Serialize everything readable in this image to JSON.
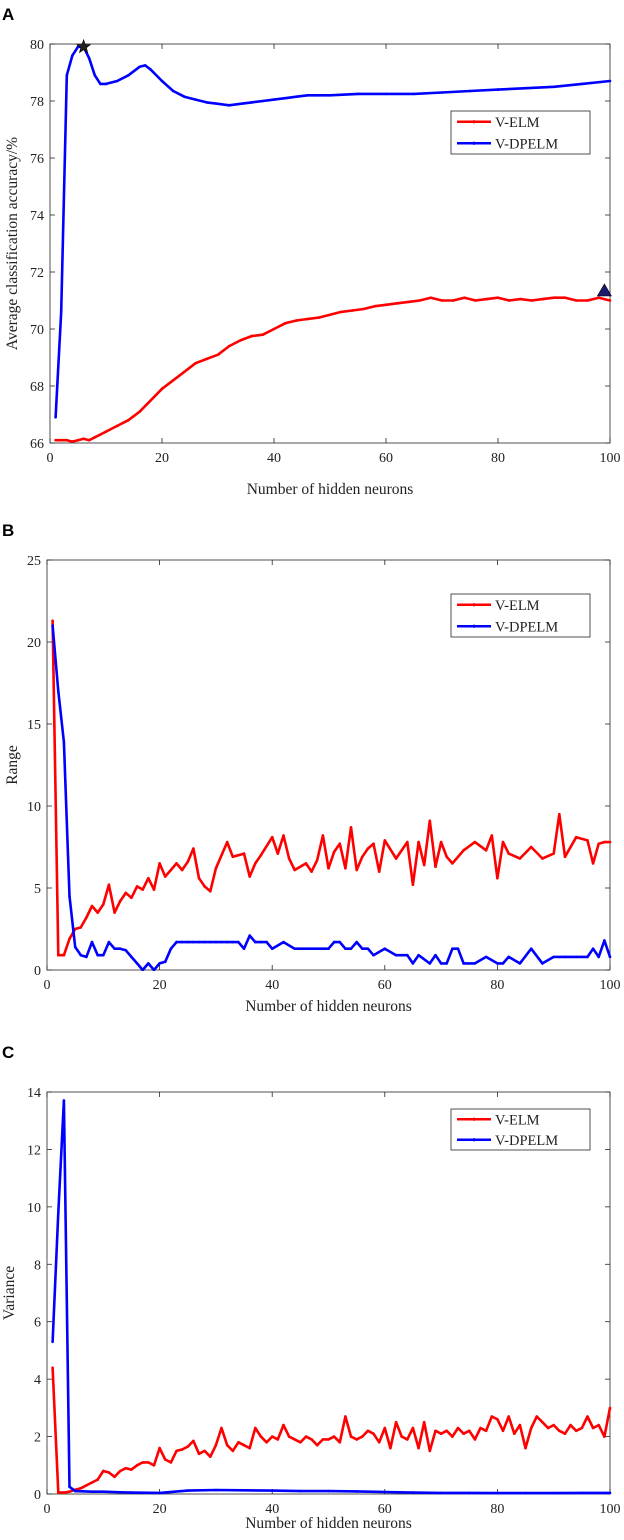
{
  "chart_data": [
    {
      "type": "line",
      "panel_label": "A",
      "xlabel": "Number of hidden neurons",
      "ylabel": "Average classification accuracy/%",
      "xlim": [
        0,
        100
      ],
      "ylim": [
        66,
        80
      ],
      "xticks": [
        0,
        20,
        40,
        60,
        80,
        100
      ],
      "yticks": [
        66,
        68,
        70,
        72,
        74,
        76,
        78,
        80
      ],
      "legend_position": "top-right",
      "grid": false,
      "series": [
        {
          "name": "V-ELM",
          "color": "#ff0000",
          "x": [
            1,
            2,
            3,
            4,
            5,
            6,
            7,
            8,
            9,
            10,
            12,
            14,
            16,
            18,
            20,
            22,
            24,
            26,
            28,
            30,
            32,
            34,
            36,
            38,
            40,
            42,
            44,
            46,
            48,
            50,
            52,
            54,
            56,
            58,
            60,
            62,
            64,
            66,
            68,
            70,
            72,
            74,
            76,
            78,
            80,
            82,
            84,
            86,
            88,
            90,
            92,
            94,
            96,
            98,
            100
          ],
          "y": [
            66.1,
            66.1,
            66.1,
            66.05,
            66.1,
            66.15,
            66.1,
            66.2,
            66.3,
            66.4,
            66.6,
            66.8,
            67.1,
            67.5,
            67.9,
            68.2,
            68.5,
            68.8,
            68.95,
            69.1,
            69.4,
            69.6,
            69.75,
            69.8,
            70.0,
            70.2,
            70.3,
            70.35,
            70.4,
            70.5,
            70.6,
            70.65,
            70.7,
            70.8,
            70.85,
            70.9,
            70.95,
            71.0,
            71.1,
            71.0,
            71.0,
            71.1,
            71.0,
            71.05,
            71.1,
            71.0,
            71.05,
            71.0,
            71.05,
            71.1,
            71.1,
            71.0,
            71.0,
            71.1,
            71.0
          ]
        },
        {
          "name": "V-DPELM",
          "color": "#0000ff",
          "x": [
            1,
            2,
            3,
            4,
            5,
            6,
            7,
            8,
            9,
            10,
            12,
            14,
            16,
            17,
            18,
            20,
            22,
            24,
            26,
            28,
            30,
            32,
            34,
            36,
            38,
            40,
            42,
            44,
            46,
            48,
            50,
            55,
            60,
            65,
            70,
            75,
            80,
            85,
            90,
            95,
            100
          ],
          "y": [
            66.9,
            70.6,
            78.9,
            79.6,
            79.9,
            79.9,
            79.5,
            78.9,
            78.6,
            78.6,
            78.7,
            78.9,
            79.2,
            79.25,
            79.1,
            78.7,
            78.35,
            78.15,
            78.05,
            77.95,
            77.9,
            77.85,
            77.9,
            77.95,
            78.0,
            78.05,
            78.1,
            78.15,
            78.2,
            78.2,
            78.2,
            78.25,
            78.25,
            78.25,
            78.3,
            78.35,
            78.4,
            78.45,
            78.5,
            78.6,
            78.7
          ]
        }
      ],
      "markers": [
        {
          "series": "V-DPELM",
          "x": 6,
          "y": 79.9,
          "shape": "star"
        },
        {
          "series": "V-ELM",
          "x": 99,
          "y": 71.3,
          "shape": "triangle"
        }
      ]
    },
    {
      "type": "line",
      "panel_label": "B",
      "xlabel": "Number of hidden neurons",
      "ylabel": "Range",
      "xlim": [
        0,
        100
      ],
      "ylim": [
        0,
        25
      ],
      "xticks": [
        0,
        20,
        40,
        60,
        80,
        100
      ],
      "yticks": [
        0,
        5,
        10,
        15,
        20,
        25
      ],
      "legend_position": "top-right",
      "grid": false,
      "series": [
        {
          "name": "V-ELM",
          "color": "#ff0000",
          "x": [
            1,
            2,
            3,
            4,
            5,
            6,
            7,
            8,
            9,
            10,
            11,
            12,
            13,
            14,
            15,
            16,
            17,
            18,
            19,
            20,
            21,
            22,
            23,
            24,
            25,
            26,
            27,
            28,
            29,
            30,
            32,
            33,
            34,
            35,
            36,
            37,
            38,
            40,
            41,
            42,
            43,
            44,
            46,
            47,
            48,
            49,
            50,
            51,
            52,
            53,
            54,
            55,
            56,
            57,
            58,
            59,
            60,
            62,
            64,
            65,
            66,
            67,
            68,
            69,
            70,
            71,
            72,
            74,
            76,
            78,
            79,
            80,
            81,
            82,
            84,
            86,
            88,
            90,
            91,
            92,
            94,
            96,
            97,
            98,
            99,
            100
          ],
          "y": [
            21.3,
            0.9,
            0.9,
            1.9,
            2.5,
            2.6,
            3.2,
            3.9,
            3.5,
            4.0,
            5.2,
            3.5,
            4.2,
            4.7,
            4.4,
            5.1,
            4.9,
            5.6,
            4.9,
            6.5,
            5.7,
            6.1,
            6.5,
            6.1,
            6.6,
            7.4,
            5.6,
            5.1,
            4.8,
            6.2,
            7.8,
            6.9,
            7.0,
            7.1,
            5.7,
            6.5,
            7.0,
            8.1,
            7.1,
            8.2,
            6.8,
            6.1,
            6.5,
            6.0,
            6.7,
            8.2,
            6.2,
            7.2,
            7.7,
            6.2,
            8.7,
            6.1,
            6.9,
            7.4,
            7.7,
            6.0,
            7.9,
            6.8,
            7.8,
            5.2,
            7.8,
            6.4,
            9.1,
            6.3,
            7.8,
            6.9,
            6.5,
            7.3,
            7.8,
            7.3,
            8.2,
            5.6,
            7.8,
            7.1,
            6.8,
            7.5,
            6.8,
            7.1,
            9.5,
            6.9,
            8.1,
            7.9,
            6.5,
            7.7,
            7.8,
            7.8
          ]
        },
        {
          "name": "V-DPELM",
          "color": "#0000ff",
          "x": [
            1,
            2,
            3,
            4,
            5,
            6,
            7,
            8,
            9,
            10,
            11,
            12,
            13,
            14,
            15,
            16,
            17,
            18,
            19,
            20,
            21,
            22,
            23,
            24,
            25,
            26,
            27,
            28,
            29,
            30,
            31,
            32,
            33,
            34,
            35,
            36,
            37,
            38,
            39,
            40,
            42,
            44,
            46,
            48,
            50,
            51,
            52,
            53,
            54,
            55,
            56,
            57,
            58,
            60,
            62,
            64,
            65,
            66,
            68,
            69,
            70,
            71,
            72,
            73,
            74,
            76,
            78,
            80,
            81,
            82,
            84,
            86,
            88,
            90,
            92,
            94,
            96,
            97,
            98,
            99,
            100
          ],
          "y": [
            21.0,
            17.0,
            13.9,
            4.5,
            1.4,
            0.9,
            0.8,
            1.7,
            0.9,
            0.9,
            1.7,
            1.3,
            1.3,
            1.2,
            0.8,
            0.4,
            0.0,
            0.4,
            0.0,
            0.4,
            0.5,
            1.3,
            1.7,
            1.7,
            1.7,
            1.7,
            1.7,
            1.7,
            1.7,
            1.7,
            1.7,
            1.7,
            1.7,
            1.7,
            1.3,
            2.1,
            1.7,
            1.7,
            1.7,
            1.3,
            1.7,
            1.3,
            1.3,
            1.3,
            1.3,
            1.7,
            1.7,
            1.3,
            1.3,
            1.7,
            1.3,
            1.3,
            0.9,
            1.3,
            0.9,
            0.9,
            0.4,
            0.9,
            0.4,
            0.9,
            0.4,
            0.4,
            1.3,
            1.3,
            0.4,
            0.4,
            0.8,
            0.4,
            0.4,
            0.8,
            0.4,
            1.3,
            0.4,
            0.8,
            0.8,
            0.8,
            0.8,
            1.3,
            0.8,
            1.8,
            0.8
          ]
        }
      ]
    },
    {
      "type": "line",
      "panel_label": "C",
      "xlabel": "Number of hidden neurons",
      "ylabel": "Variance",
      "xlim": [
        0,
        100
      ],
      "ylim": [
        0,
        14
      ],
      "xticks": [
        0,
        20,
        40,
        60,
        80,
        100
      ],
      "yticks": [
        0,
        2,
        4,
        6,
        8,
        10,
        12,
        14
      ],
      "legend_position": "top-right",
      "grid": false,
      "series": [
        {
          "name": "V-ELM",
          "color": "#ff0000",
          "x": [
            1,
            2,
            3,
            4,
            5,
            6,
            7,
            8,
            9,
            10,
            11,
            12,
            13,
            14,
            15,
            16,
            17,
            18,
            19,
            20,
            21,
            22,
            23,
            24,
            25,
            26,
            27,
            28,
            29,
            30,
            31,
            32,
            33,
            34,
            35,
            36,
            37,
            38,
            39,
            40,
            41,
            42,
            43,
            44,
            45,
            46,
            47,
            48,
            49,
            50,
            51,
            52,
            53,
            54,
            55,
            56,
            57,
            58,
            59,
            60,
            61,
            62,
            63,
            64,
            65,
            66,
            67,
            68,
            69,
            70,
            71,
            72,
            73,
            74,
            75,
            76,
            77,
            78,
            79,
            80,
            81,
            82,
            83,
            84,
            85,
            86,
            87,
            88,
            89,
            90,
            91,
            92,
            93,
            94,
            95,
            96,
            97,
            98,
            99,
            100
          ],
          "y": [
            4.4,
            0.05,
            0.05,
            0.08,
            0.15,
            0.2,
            0.3,
            0.4,
            0.5,
            0.8,
            0.75,
            0.6,
            0.8,
            0.9,
            0.85,
            1.0,
            1.1,
            1.1,
            1.0,
            1.6,
            1.2,
            1.1,
            1.5,
            1.55,
            1.65,
            1.85,
            1.4,
            1.5,
            1.3,
            1.7,
            2.3,
            1.7,
            1.5,
            1.8,
            1.7,
            1.6,
            2.3,
            2.0,
            1.8,
            2.0,
            1.9,
            2.4,
            2.0,
            1.9,
            1.8,
            2.0,
            1.9,
            1.7,
            1.9,
            1.9,
            2.0,
            1.8,
            2.7,
            2.0,
            1.9,
            2.0,
            2.2,
            2.1,
            1.8,
            2.3,
            1.6,
            2.5,
            2.0,
            1.9,
            2.3,
            1.6,
            2.5,
            1.5,
            2.2,
            2.1,
            2.2,
            2.0,
            2.3,
            2.1,
            2.2,
            1.9,
            2.3,
            2.2,
            2.7,
            2.6,
            2.2,
            2.7,
            2.1,
            2.4,
            1.6,
            2.3,
            2.7,
            2.5,
            2.3,
            2.4,
            2.2,
            2.1,
            2.4,
            2.2,
            2.3,
            2.7,
            2.3,
            2.4,
            2.0,
            3.0
          ]
        },
        {
          "name": "V-DPELM",
          "color": "#0000ff",
          "x": [
            1,
            2,
            3,
            4,
            5,
            8,
            10,
            15,
            20,
            25,
            30,
            35,
            40,
            45,
            50,
            55,
            60,
            65,
            70,
            75,
            80,
            85,
            90,
            95,
            100
          ],
          "y": [
            5.3,
            9.8,
            13.7,
            0.25,
            0.1,
            0.08,
            0.08,
            0.05,
            0.04,
            0.12,
            0.14,
            0.13,
            0.12,
            0.1,
            0.1,
            0.09,
            0.07,
            0.05,
            0.04,
            0.04,
            0.03,
            0.03,
            0.03,
            0.04,
            0.04
          ]
        }
      ]
    }
  ]
}
